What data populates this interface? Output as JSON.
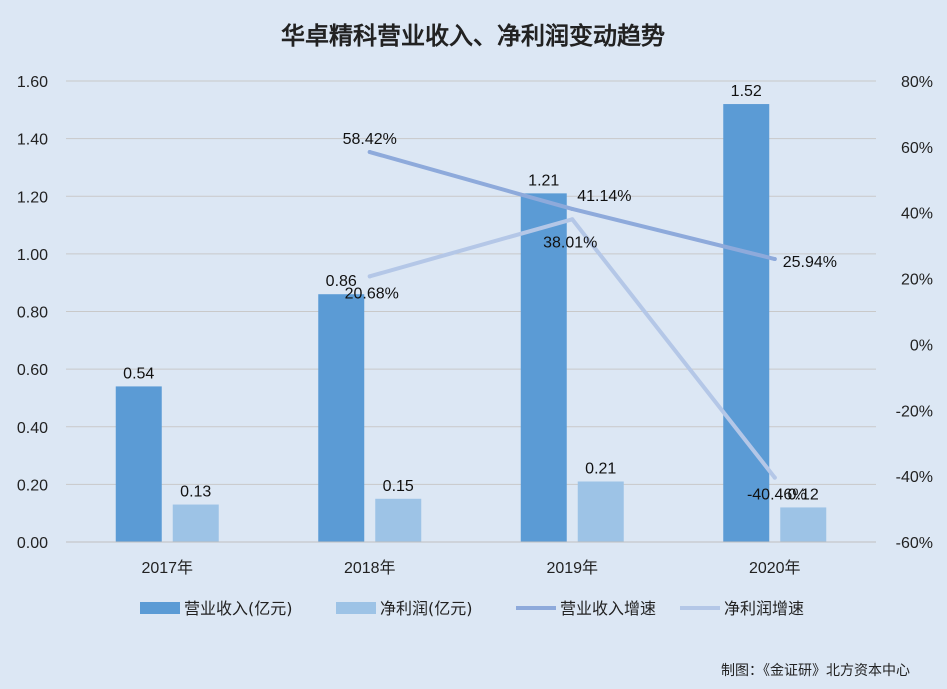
{
  "colors": {
    "background": "#dce7f4",
    "revenue": "#5b9bd5",
    "profit": "#9dc3e6",
    "revenue_growth": "#8eaadb",
    "profit_growth": "#b4c7e7",
    "grid": "#c9c9c9"
  },
  "chart_data": {
    "type": "bar",
    "title": "华卓精科营业收入、净利润变动趋势",
    "categories": [
      "2017年",
      "2018年",
      "2019年",
      "2020年"
    ],
    "y_left": {
      "range": [
        0,
        1.6
      ],
      "ticks": [
        "0.00",
        "0.20",
        "0.40",
        "0.60",
        "0.80",
        "1.00",
        "1.20",
        "1.40",
        "1.60"
      ]
    },
    "y_right": {
      "range": [
        -60,
        80
      ],
      "ticks": [
        "-60%",
        "-40%",
        "-20%",
        "0%",
        "20%",
        "40%",
        "60%",
        "80%"
      ]
    },
    "grid": true,
    "legend_position": "bottom",
    "series": [
      {
        "name": "营业收入(亿元)",
        "type": "bar",
        "axis": "left",
        "color": "#5b9bd5",
        "values": [
          0.54,
          0.86,
          1.21,
          1.52
        ],
        "labels": [
          "0.54",
          "0.86",
          "1.21",
          "1.52"
        ]
      },
      {
        "name": "净利润(亿元)",
        "type": "bar",
        "axis": "left",
        "color": "#9dc3e6",
        "values": [
          0.13,
          0.15,
          0.21,
          0.12
        ],
        "labels": [
          "0.13",
          "0.15",
          "0.21",
          "0.12"
        ]
      },
      {
        "name": "营业收入增速",
        "type": "line",
        "axis": "right",
        "color": "#8eaadb",
        "values": [
          null,
          58.42,
          41.14,
          25.94
        ],
        "labels": [
          null,
          "58.42%",
          "41.14%",
          "25.94%"
        ]
      },
      {
        "name": "净利润增速",
        "type": "line",
        "axis": "right",
        "color": "#b4c7e7",
        "values": [
          null,
          20.68,
          38.01,
          -40.46
        ],
        "labels": [
          null,
          "20.68%",
          "38.01%",
          "-40.46%"
        ]
      }
    ]
  },
  "credit": "制图：《金证研》北方资本中心"
}
